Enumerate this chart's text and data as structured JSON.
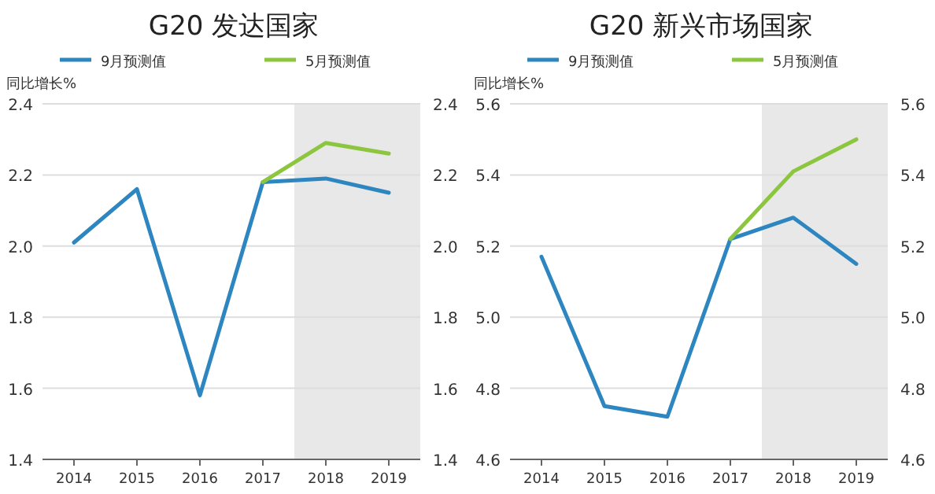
{
  "chart_data": [
    {
      "type": "line",
      "title": "G20 发达国家",
      "ylabel": "同比增长%",
      "x": [
        2014,
        2015,
        2016,
        2017,
        2018,
        2019
      ],
      "xlim": [
        2013.5,
        2019.5
      ],
      "xticks": [
        2014,
        2015,
        2016,
        2017,
        2018,
        2019
      ],
      "ylim": [
        1.4,
        2.4
      ],
      "yticks": [
        {
          "value": 1.4,
          "label": "1.4"
        },
        {
          "value": 1.6,
          "label": "1.6"
        },
        {
          "value": 1.8,
          "label": "1.8"
        },
        {
          "value": 2.0,
          "label": "2.0"
        },
        {
          "value": 2.2,
          "label": "2.2"
        },
        {
          "value": 2.4,
          "label": "2.4"
        }
      ],
      "y2lim": [
        1.4,
        2.4
      ],
      "y2ticks": [
        {
          "value": 1.4,
          "label": "1.4"
        },
        {
          "value": 1.6,
          "label": "1.6"
        },
        {
          "value": 1.8,
          "label": "1.8"
        },
        {
          "value": 2.0,
          "label": "2.0"
        },
        {
          "value": 2.2,
          "label": "2.2"
        },
        {
          "value": 2.4,
          "label": "2.4"
        }
      ],
      "grid": "y",
      "legend": "top",
      "marker": "none",
      "line_style": "solid",
      "bands": [
        {
          "axis": "x",
          "from": 2017.5,
          "to": 2019.5,
          "color": "#e8e8e8"
        }
      ],
      "series": [
        {
          "name": "9月预测值",
          "color": "#2e86c1",
          "values": [
            2.01,
            2.16,
            1.58,
            2.18,
            2.19,
            2.15
          ]
        },
        {
          "name": "5月预测值",
          "color": "#8cc63f",
          "values": [
            null,
            null,
            null,
            2.18,
            2.29,
            2.26
          ]
        }
      ]
    },
    {
      "type": "line",
      "title": "G20 新兴市场国家",
      "ylabel": "同比增长%",
      "x": [
        2014,
        2015,
        2016,
        2017,
        2018,
        2019
      ],
      "xlim": [
        2013.5,
        2019.5
      ],
      "xticks": [
        2014,
        2015,
        2016,
        2017,
        2018,
        2019
      ],
      "ylim": [
        4.6,
        5.6
      ],
      "yticks": [
        {
          "value": 4.6,
          "label": "4.6"
        },
        {
          "value": 4.8,
          "label": "4.8"
        },
        {
          "value": 5.0,
          "label": "5.0"
        },
        {
          "value": 5.2,
          "label": "5.2"
        },
        {
          "value": 5.4,
          "label": "5.4"
        },
        {
          "value": 5.6,
          "label": "5.6"
        }
      ],
      "y2lim": [
        4.6,
        5.6
      ],
      "y2ticks": [
        {
          "value": 4.6,
          "label": "4.6"
        },
        {
          "value": 4.8,
          "label": "4.8"
        },
        {
          "value": 5.0,
          "label": "5.0"
        },
        {
          "value": 5.2,
          "label": "5.2"
        },
        {
          "value": 5.4,
          "label": "5.4"
        },
        {
          "value": 5.6,
          "label": "5.6"
        }
      ],
      "grid": "y",
      "legend": "top",
      "marker": "none",
      "line_style": "solid",
      "bands": [
        {
          "axis": "x",
          "from": 2017.5,
          "to": 2019.5,
          "color": "#e8e8e8"
        }
      ],
      "series": [
        {
          "name": "9月预测值",
          "color": "#2e86c1",
          "values": [
            5.17,
            4.75,
            4.72,
            5.22,
            5.28,
            5.15
          ]
        },
        {
          "name": "5月预测值",
          "color": "#8cc63f",
          "values": [
            null,
            null,
            null,
            5.22,
            5.41,
            5.5
          ]
        }
      ]
    }
  ]
}
